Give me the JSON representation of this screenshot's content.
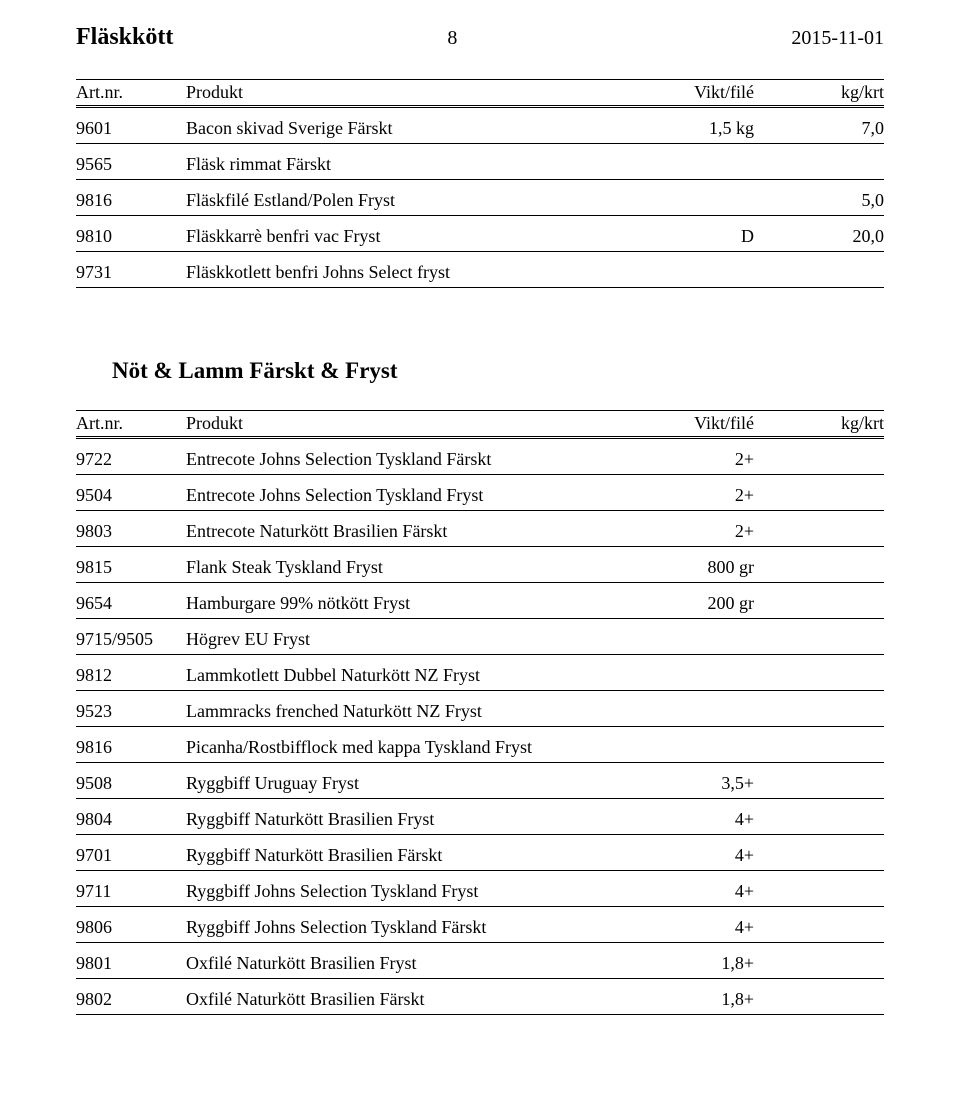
{
  "header": {
    "title": "Fläskkött",
    "page_number": "8",
    "date": "2015-11-01"
  },
  "columns": {
    "art": "Art.nr.",
    "produkt": "Produkt",
    "vikt": "Vikt/filé",
    "kgkrt": "kg/krt"
  },
  "section1": {
    "rows": [
      {
        "art": "9601",
        "produkt": "Bacon skivad Sverige Färskt",
        "vikt": "1,5 kg",
        "kgkrt": "7,0"
      },
      {
        "art": "9565",
        "produkt": "Fläsk rimmat Färskt",
        "vikt": "",
        "kgkrt": ""
      },
      {
        "art": "9816",
        "produkt": "Fläskfilé Estland/Polen Fryst",
        "vikt": "",
        "kgkrt": "5,0"
      },
      {
        "art": "9810",
        "produkt": "Fläskkarrè benfri vac Fryst",
        "vikt": "D",
        "kgkrt": "20,0"
      },
      {
        "art": "9731",
        "produkt": "Fläskkotlett benfri Johns Select fryst",
        "vikt": "",
        "kgkrt": ""
      }
    ]
  },
  "section2": {
    "title": "Nöt & Lamm Färskt & Fryst",
    "rows": [
      {
        "art": "9722",
        "produkt": "Entrecote Johns Selection Tyskland Färskt",
        "vikt": "2+",
        "kgkrt": ""
      },
      {
        "art": "9504",
        "produkt": "Entrecote Johns Selection Tyskland Fryst",
        "vikt": "2+",
        "kgkrt": ""
      },
      {
        "art": "9803",
        "produkt": "Entrecote Naturkött Brasilien Färskt",
        "vikt": "2+",
        "kgkrt": ""
      },
      {
        "art": "9815",
        "produkt": "Flank Steak Tyskland Fryst",
        "vikt": "800 gr",
        "kgkrt": ""
      },
      {
        "art": "9654",
        "produkt": "Hamburgare 99% nötkött Fryst",
        "vikt": "200 gr",
        "kgkrt": ""
      },
      {
        "art": "9715/9505",
        "produkt": "Högrev EU Fryst",
        "vikt": "",
        "kgkrt": ""
      },
      {
        "art": "9812",
        "produkt": "Lammkotlett Dubbel Naturkött NZ Fryst",
        "vikt": "",
        "kgkrt": ""
      },
      {
        "art": "9523",
        "produkt": "Lammracks frenched Naturkött NZ Fryst",
        "vikt": "",
        "kgkrt": ""
      },
      {
        "art": "9816",
        "produkt": "Picanha/Rostbifflock med kappa Tyskland Fryst",
        "vikt": "",
        "kgkrt": ""
      },
      {
        "art": "9508",
        "produkt": "Ryggbiff Uruguay Fryst",
        "vikt": "3,5+",
        "kgkrt": ""
      },
      {
        "art": "9804",
        "produkt": "Ryggbiff Naturkött Brasilien  Fryst",
        "vikt": "4+",
        "kgkrt": ""
      },
      {
        "art": "9701",
        "produkt": "Ryggbiff Naturkött Brasilien Färskt",
        "vikt": "4+",
        "kgkrt": ""
      },
      {
        "art": "9711",
        "produkt": "Ryggbiff Johns Selection Tyskland Fryst",
        "vikt": "4+",
        "kgkrt": ""
      },
      {
        "art": "9806",
        "produkt": "Ryggbiff Johns Selection Tyskland Färskt",
        "vikt": "4+",
        "kgkrt": ""
      },
      {
        "art": "9801",
        "produkt": "Oxfilé Naturkött Brasilien Fryst",
        "vikt": "1,8+",
        "kgkrt": ""
      },
      {
        "art": "9802",
        "produkt": "Oxfilé Naturkött Brasilien Färskt",
        "vikt": "1,8+",
        "kgkrt": ""
      }
    ]
  }
}
